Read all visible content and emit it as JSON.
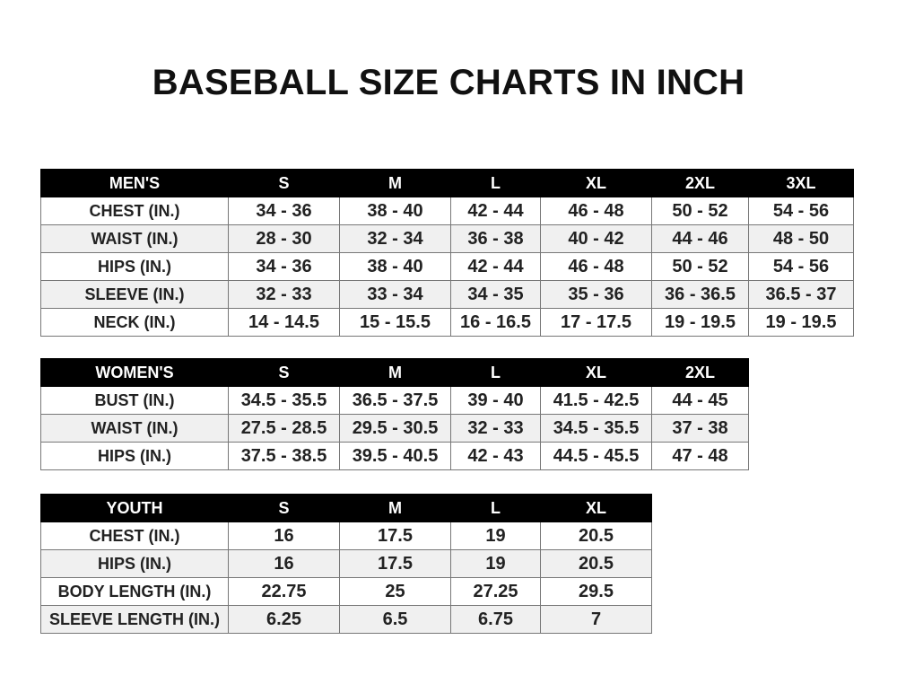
{
  "title": "BASEBALL SIZE CHARTS IN INCH",
  "men": {
    "headers": [
      "MEN'S",
      "S",
      "M",
      "L",
      "XL",
      "2XL",
      "3XL"
    ],
    "rows": [
      [
        "CHEST (IN.)",
        "34 - 36",
        "38 - 40",
        "42 - 44",
        "46 - 48",
        "50 - 52",
        "54 - 56"
      ],
      [
        "WAIST (IN.)",
        "28 - 30",
        "32 - 34",
        "36 - 38",
        "40 - 42",
        "44 - 46",
        "48 - 50"
      ],
      [
        "HIPS (IN.)",
        "34 - 36",
        "38 - 40",
        "42 - 44",
        "46 - 48",
        "50 - 52",
        "54 - 56"
      ],
      [
        "SLEEVE (IN.)",
        "32 - 33",
        "33 - 34",
        "34 - 35",
        "35 - 36",
        "36 - 36.5",
        "36.5 - 37"
      ],
      [
        "NECK (IN.)",
        "14 - 14.5",
        "15 - 15.5",
        "16 - 16.5",
        "17 - 17.5",
        "19 - 19.5",
        "19 - 19.5"
      ]
    ]
  },
  "women": {
    "headers": [
      "WOMEN'S",
      "S",
      "M",
      "L",
      "XL",
      "2XL"
    ],
    "rows": [
      [
        "BUST (IN.)",
        "34.5 - 35.5",
        "36.5 - 37.5",
        "39 - 40",
        "41.5 - 42.5",
        "44 - 45"
      ],
      [
        "WAIST (IN.)",
        "27.5 - 28.5",
        "29.5 - 30.5",
        "32 - 33",
        "34.5 - 35.5",
        "37 - 38"
      ],
      [
        "HIPS (IN.)",
        "37.5 - 38.5",
        "39.5 - 40.5",
        "42 - 43",
        "44.5 - 45.5",
        "47 - 48"
      ]
    ]
  },
  "youth": {
    "headers": [
      "YOUTH",
      "S",
      "M",
      "L",
      "XL"
    ],
    "rows": [
      [
        "CHEST (IN.)",
        "16",
        "17.5",
        "19",
        "20.5"
      ],
      [
        "HIPS (IN.)",
        "16",
        "17.5",
        "19",
        "20.5"
      ],
      [
        "BODY LENGTH (IN.)",
        "22.75",
        "25",
        "27.25",
        "29.5"
      ],
      [
        "SLEEVE LENGTH (IN.)",
        "6.25",
        "6.5",
        "6.75",
        "7"
      ]
    ]
  }
}
